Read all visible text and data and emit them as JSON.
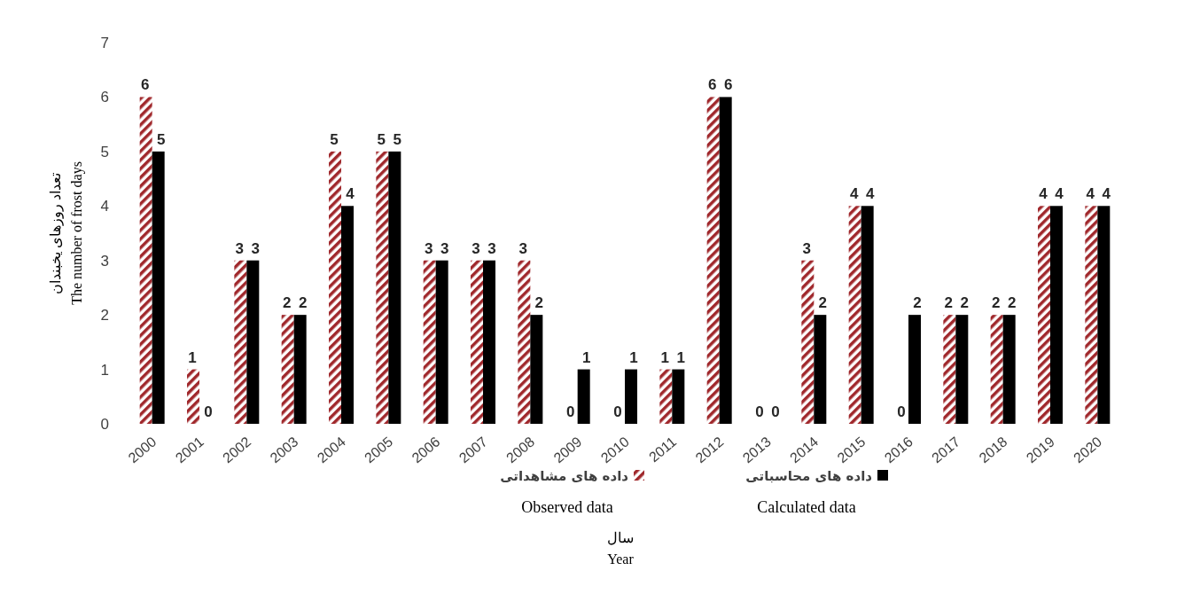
{
  "chart_data": {
    "type": "bar",
    "ylabel": "تعداد روزهای یخبندان\nThe number of frost days",
    "xlabel": "سال\nYear",
    "categories": [
      "2000",
      "2001",
      "2002",
      "2003",
      "2004",
      "2005",
      "2006",
      "2007",
      "2008",
      "2009",
      "2010",
      "2011",
      "2012",
      "2013",
      "2014",
      "2015",
      "2016",
      "2017",
      "2018",
      "2019",
      "2020"
    ],
    "series": [
      {
        "name": "داده های مشاهداتی",
        "color": "#a0282c",
        "values": [
          6,
          1,
          3,
          2,
          5,
          5,
          3,
          3,
          3,
          0,
          0,
          1,
          6,
          0,
          3,
          4,
          0,
          2,
          2,
          4,
          4
        ]
      },
      {
        "name": "داده های محاسباتی",
        "color": "#000000",
        "values": [
          5,
          0,
          3,
          2,
          4,
          5,
          3,
          3,
          2,
          1,
          1,
          1,
          6,
          0,
          2,
          4,
          2,
          2,
          2,
          4,
          4
        ]
      }
    ],
    "ylim": [
      0,
      7
    ],
    "yticks": [
      0,
      1,
      2,
      3,
      4,
      5,
      6,
      7
    ],
    "data_labels": true,
    "legend": "bottom",
    "grid": false,
    "annotations": [
      "Observed data",
      "Calculated data"
    ]
  }
}
